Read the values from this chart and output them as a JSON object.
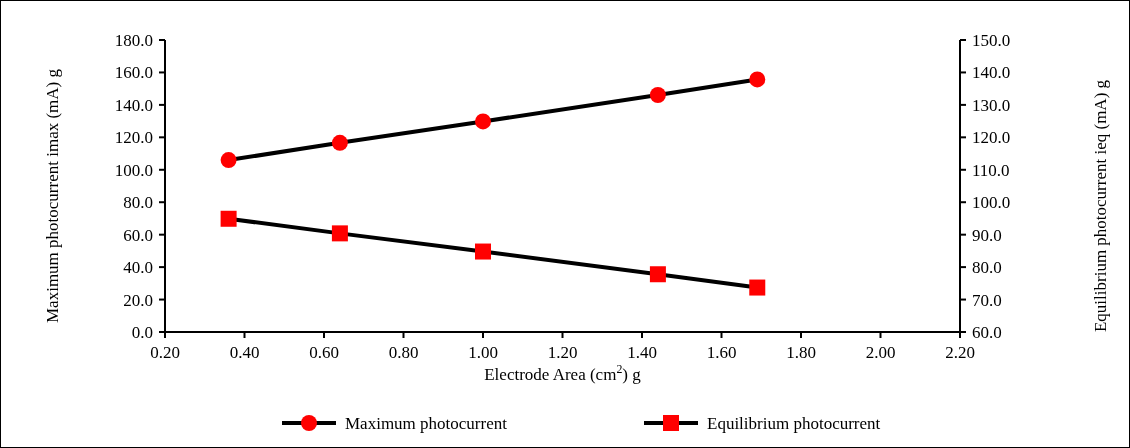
{
  "chart_data": {
    "type": "line",
    "xlabel": "Electrode Area (cm$^{2}$) g",
    "ylabel": "Maximum photocurrent  imax (mA) g",
    "y2label": "Equilibrium photocurrent  ieq (mA)  g",
    "x": [
      0.36,
      0.64,
      1.0,
      1.44,
      1.69
    ],
    "series": [
      {
        "name": "Maximum photocurrent",
        "color": "#ff0000",
        "values": [
          106.0,
          116.6,
          129.8,
          146.1,
          155.7
        ],
        "marker": "circle"
      },
      {
        "name": "Equilibrium photocurrent",
        "color": "#ff0000",
        "values": [
          94.9,
          90.4,
          84.8,
          77.8,
          73.7
        ],
        "marker": "square",
        "axis": "y2"
      }
    ],
    "xlim": [
      0.2,
      2.2
    ],
    "xticks": [
      {
        "value": 0.2,
        "label": "0.20"
      },
      {
        "value": 0.4,
        "label": "0.40"
      },
      {
        "value": 0.6,
        "label": "0.60"
      },
      {
        "value": 0.8,
        "label": "0.80"
      },
      {
        "value": 1.0,
        "label": "1.00"
      },
      {
        "value": 1.2,
        "label": "1.20"
      },
      {
        "value": 1.4,
        "label": "1.40"
      },
      {
        "value": 1.6,
        "label": "1.60"
      },
      {
        "value": 1.8,
        "label": "1.80"
      },
      {
        "value": 2.0,
        "label": "2.00"
      },
      {
        "value": 2.2,
        "label": "2.20"
      }
    ],
    "ylim": [
      0,
      180
    ],
    "yticks": [
      {
        "value": 0,
        "label": "0.0"
      },
      {
        "value": 20,
        "label": "20.0"
      },
      {
        "value": 40,
        "label": "40.0"
      },
      {
        "value": 60,
        "label": "60.0"
      },
      {
        "value": 80,
        "label": "80.0"
      },
      {
        "value": 100,
        "label": "100.0"
      },
      {
        "value": 120,
        "label": "120.0"
      },
      {
        "value": 140,
        "label": "140.0"
      },
      {
        "value": 160,
        "label": "160.0"
      },
      {
        "value": 180,
        "label": "180.0"
      }
    ],
    "y2lim": [
      60,
      150
    ],
    "y2ticks": [
      {
        "value": 60,
        "label": "60.0"
      },
      {
        "value": 70,
        "label": "70.0"
      },
      {
        "value": 80,
        "label": "80.0"
      },
      {
        "value": 90,
        "label": "90.0"
      },
      {
        "value": 100,
        "label": "100.0"
      },
      {
        "value": 110,
        "label": "110.0"
      },
      {
        "value": 120,
        "label": "120.0"
      },
      {
        "value": 130,
        "label": "130.0"
      },
      {
        "value": 140,
        "label": "140.0"
      },
      {
        "value": 150,
        "label": "150.0"
      }
    ],
    "legend": "bottom",
    "grid": false,
    "line_style": "solid"
  }
}
